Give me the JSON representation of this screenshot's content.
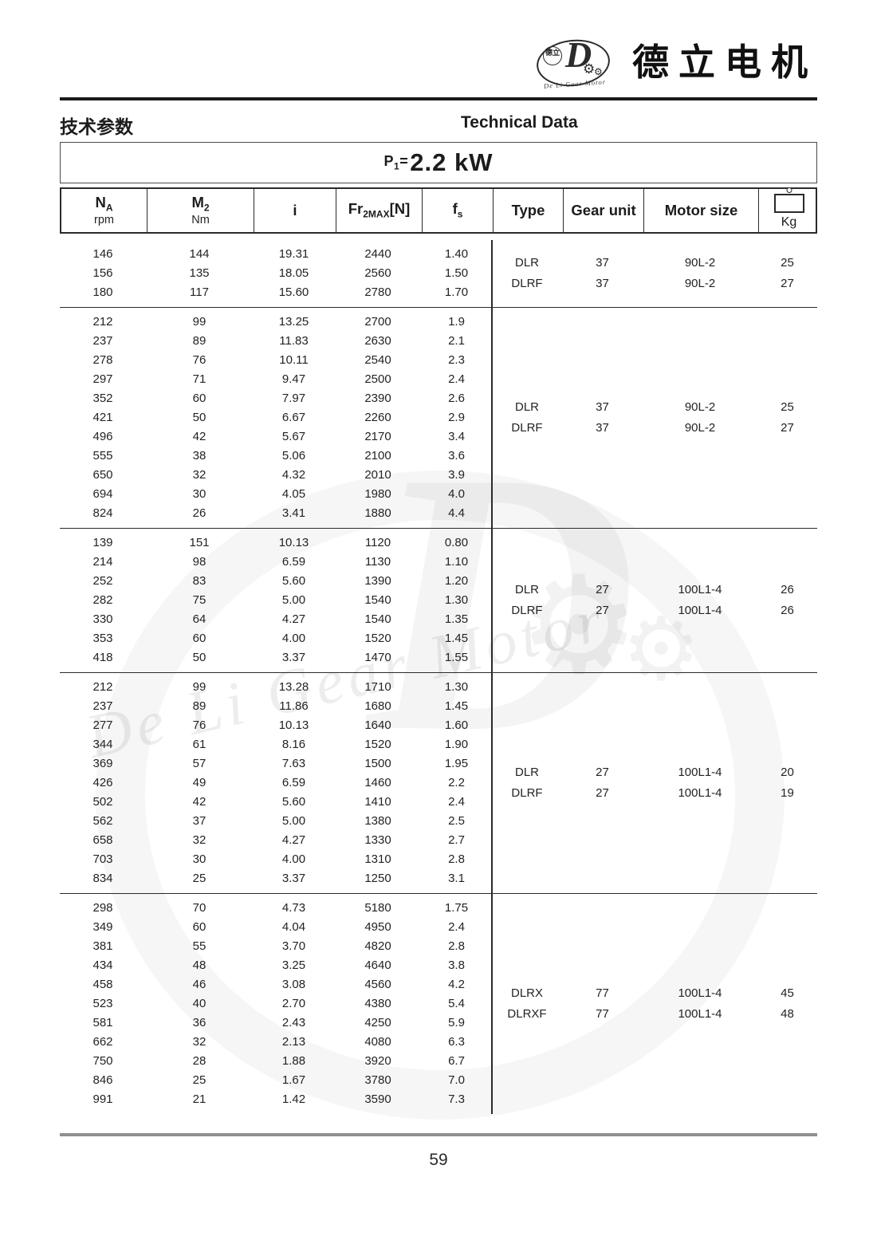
{
  "brand": {
    "name_cn": "德立电机",
    "emblem_letter": "D",
    "emblem_cn": "德立",
    "emblem_en": "De Li Gear Motor",
    "gear_glyph": "⚙"
  },
  "heading": {
    "cn": "技术参数",
    "en": "Technical Data"
  },
  "power": {
    "p": "P",
    "p_sub": "1",
    "equals": "=",
    "value": "2.2 kW"
  },
  "table_header": {
    "na_main": "N",
    "na_sub": "A",
    "na_unit": "rpm",
    "m2_main": "M",
    "m2_sub": "2",
    "m2_unit": "Nm",
    "i_label": "i",
    "fr_main": "Fr",
    "fr_sub": "2MAX",
    "fr_bracket": "[N]",
    "fs_main": "f",
    "fs_sub": "s",
    "type_label": "Type",
    "gear_unit_label": "Gear unit",
    "motor_size_label": "Motor size",
    "kg_label": "Kg",
    "kg_icon": "weight-icon"
  },
  "blocks": [
    {
      "rows": [
        [
          "146",
          "144",
          "19.31",
          "2440",
          "1.40"
        ],
        [
          "156",
          "135",
          "18.05",
          "2560",
          "1.50"
        ],
        [
          "180",
          "117",
          "15.60",
          "2780",
          "1.70"
        ]
      ],
      "models": [
        {
          "type": "DLR",
          "gear": "37",
          "motor": "90L-2",
          "kg": "25"
        },
        {
          "type": "DLRF",
          "gear": "37",
          "motor": "90L-2",
          "kg": "27"
        }
      ]
    },
    {
      "rows": [
        [
          "212",
          "99",
          "13.25",
          "2700",
          "1.9"
        ],
        [
          "237",
          "89",
          "11.83",
          "2630",
          "2.1"
        ],
        [
          "278",
          "76",
          "10.11",
          "2540",
          "2.3"
        ],
        [
          "297",
          "71",
          "9.47",
          "2500",
          "2.4"
        ],
        [
          "352",
          "60",
          "7.97",
          "2390",
          "2.6"
        ],
        [
          "421",
          "50",
          "6.67",
          "2260",
          "2.9"
        ],
        [
          "496",
          "42",
          "5.67",
          "2170",
          "3.4"
        ],
        [
          "555",
          "38",
          "5.06",
          "2100",
          "3.6"
        ],
        [
          "650",
          "32",
          "4.32",
          "2010",
          "3.9"
        ],
        [
          "694",
          "30",
          "4.05",
          "1980",
          "4.0"
        ],
        [
          "824",
          "26",
          "3.41",
          "1880",
          "4.4"
        ]
      ],
      "models": [
        {
          "type": "DLR",
          "gear": "37",
          "motor": "90L-2",
          "kg": "25"
        },
        {
          "type": "DLRF",
          "gear": "37",
          "motor": "90L-2",
          "kg": "27"
        }
      ]
    },
    {
      "rows": [
        [
          "139",
          "151",
          "10.13",
          "1120",
          "0.80"
        ],
        [
          "214",
          "98",
          "6.59",
          "1130",
          "1.10"
        ],
        [
          "252",
          "83",
          "5.60",
          "1390",
          "1.20"
        ],
        [
          "282",
          "75",
          "5.00",
          "1540",
          "1.30"
        ],
        [
          "330",
          "64",
          "4.27",
          "1540",
          "1.35"
        ],
        [
          "353",
          "60",
          "4.00",
          "1520",
          "1.45"
        ],
        [
          "418",
          "50",
          "3.37",
          "1470",
          "1.55"
        ]
      ],
      "models": [
        {
          "type": "DLR",
          "gear": "27",
          "motor": "100L1-4",
          "kg": "26"
        },
        {
          "type": "DLRF",
          "gear": "27",
          "motor": "100L1-4",
          "kg": "26"
        }
      ]
    },
    {
      "rows": [
        [
          "212",
          "99",
          "13.28",
          "1710",
          "1.30"
        ],
        [
          "237",
          "89",
          "11.86",
          "1680",
          "1.45"
        ],
        [
          "277",
          "76",
          "10.13",
          "1640",
          "1.60"
        ],
        [
          "344",
          "61",
          "8.16",
          "1520",
          "1.90"
        ],
        [
          "369",
          "57",
          "7.63",
          "1500",
          "1.95"
        ],
        [
          "426",
          "49",
          "6.59",
          "1460",
          "2.2"
        ],
        [
          "502",
          "42",
          "5.60",
          "1410",
          "2.4"
        ],
        [
          "562",
          "37",
          "5.00",
          "1380",
          "2.5"
        ],
        [
          "658",
          "32",
          "4.27",
          "1330",
          "2.7"
        ],
        [
          "703",
          "30",
          "4.00",
          "1310",
          "2.8"
        ],
        [
          "834",
          "25",
          "3.37",
          "1250",
          "3.1"
        ]
      ],
      "models": [
        {
          "type": "DLR",
          "gear": "27",
          "motor": "100L1-4",
          "kg": "20"
        },
        {
          "type": "DLRF",
          "gear": "27",
          "motor": "100L1-4",
          "kg": "19"
        }
      ]
    },
    {
      "rows": [
        [
          "298",
          "70",
          "4.73",
          "5180",
          "1.75"
        ],
        [
          "349",
          "60",
          "4.04",
          "4950",
          "2.4"
        ],
        [
          "381",
          "55",
          "3.70",
          "4820",
          "2.8"
        ],
        [
          "434",
          "48",
          "3.25",
          "4640",
          "3.8"
        ],
        [
          "458",
          "46",
          "3.08",
          "4560",
          "4.2"
        ],
        [
          "523",
          "40",
          "2.70",
          "4380",
          "5.4"
        ],
        [
          "581",
          "36",
          "2.43",
          "4250",
          "5.9"
        ],
        [
          "662",
          "32",
          "2.13",
          "4080",
          "6.3"
        ],
        [
          "750",
          "28",
          "1.88",
          "3920",
          "6.7"
        ],
        [
          "846",
          "25",
          "1.67",
          "3780",
          "7.0"
        ],
        [
          "991",
          "21",
          "1.42",
          "3590",
          "7.3"
        ]
      ],
      "models": [
        {
          "type": "DLRX",
          "gear": "77",
          "motor": "100L1-4",
          "kg": "45"
        },
        {
          "type": "DLRXF",
          "gear": "77",
          "motor": "100L1-4",
          "kg": "48"
        }
      ]
    }
  ],
  "watermark": {
    "script": "De Li Gear Motor",
    "letter": "D",
    "gear_glyph": "⚙"
  },
  "footer": {
    "page_number": "59"
  }
}
